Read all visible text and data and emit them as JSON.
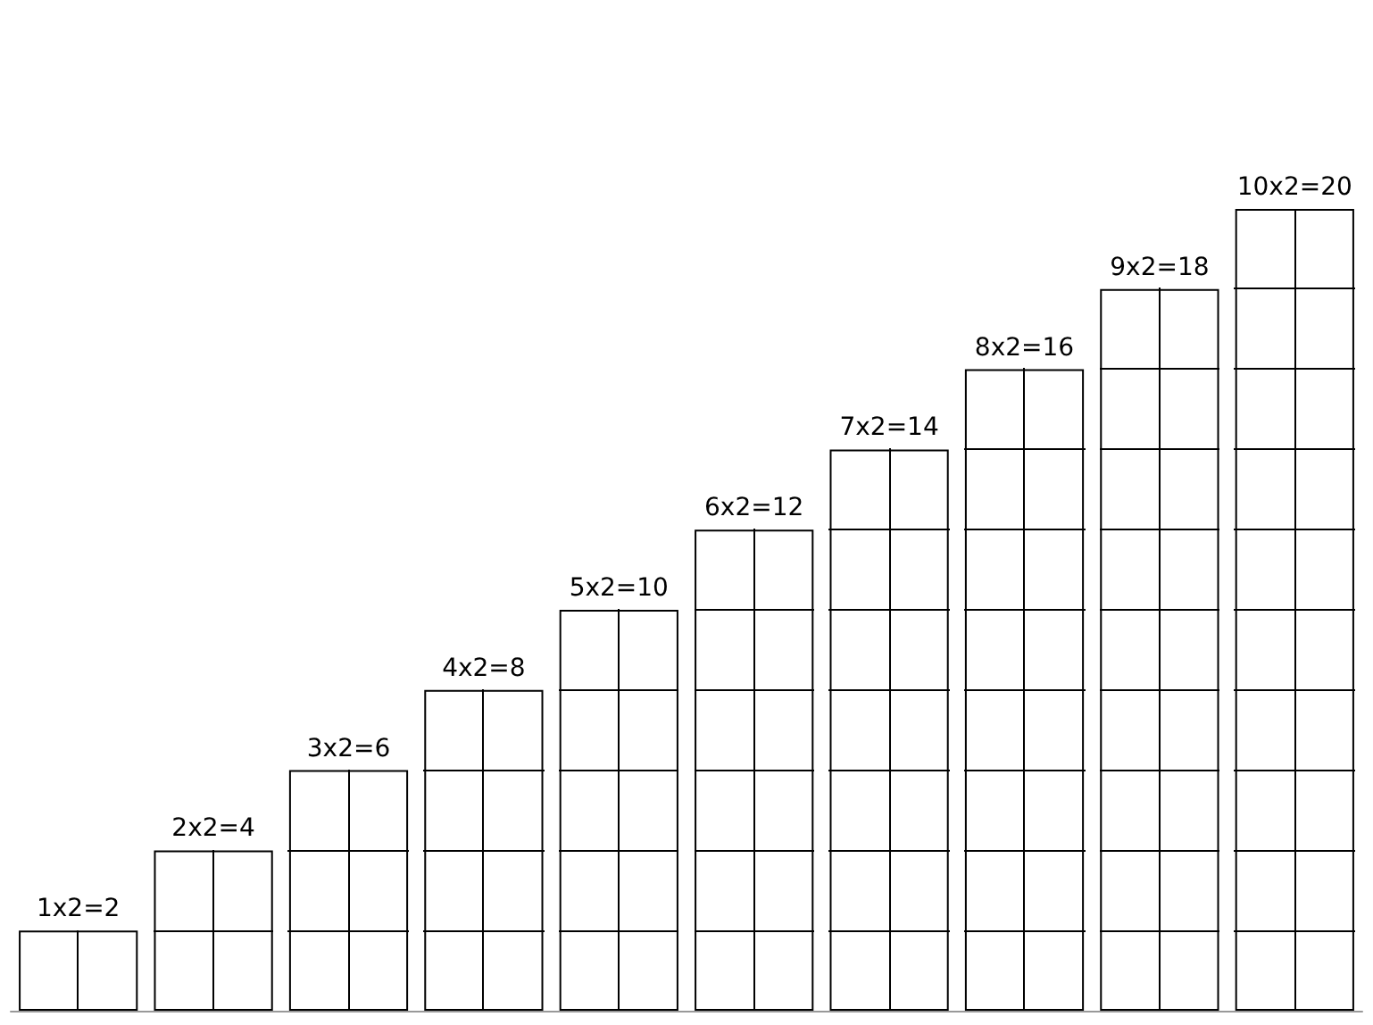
{
  "chart_data": {
    "type": "bar",
    "categories": [
      null,
      null,
      null,
      null,
      null,
      null,
      null,
      null,
      null,
      null
    ],
    "values": [
      2,
      4,
      6,
      8,
      10,
      12,
      14,
      16,
      18,
      20
    ],
    "value_labels": [
      "1x2=2",
      "2x2=4",
      "3x2=6",
      "4x2=8",
      "5x2=10",
      "6x2=12",
      "7x2=14",
      "8x2=16",
      "9x2=18",
      "10x2=20"
    ],
    "color": "#ffffff"
  }
}
